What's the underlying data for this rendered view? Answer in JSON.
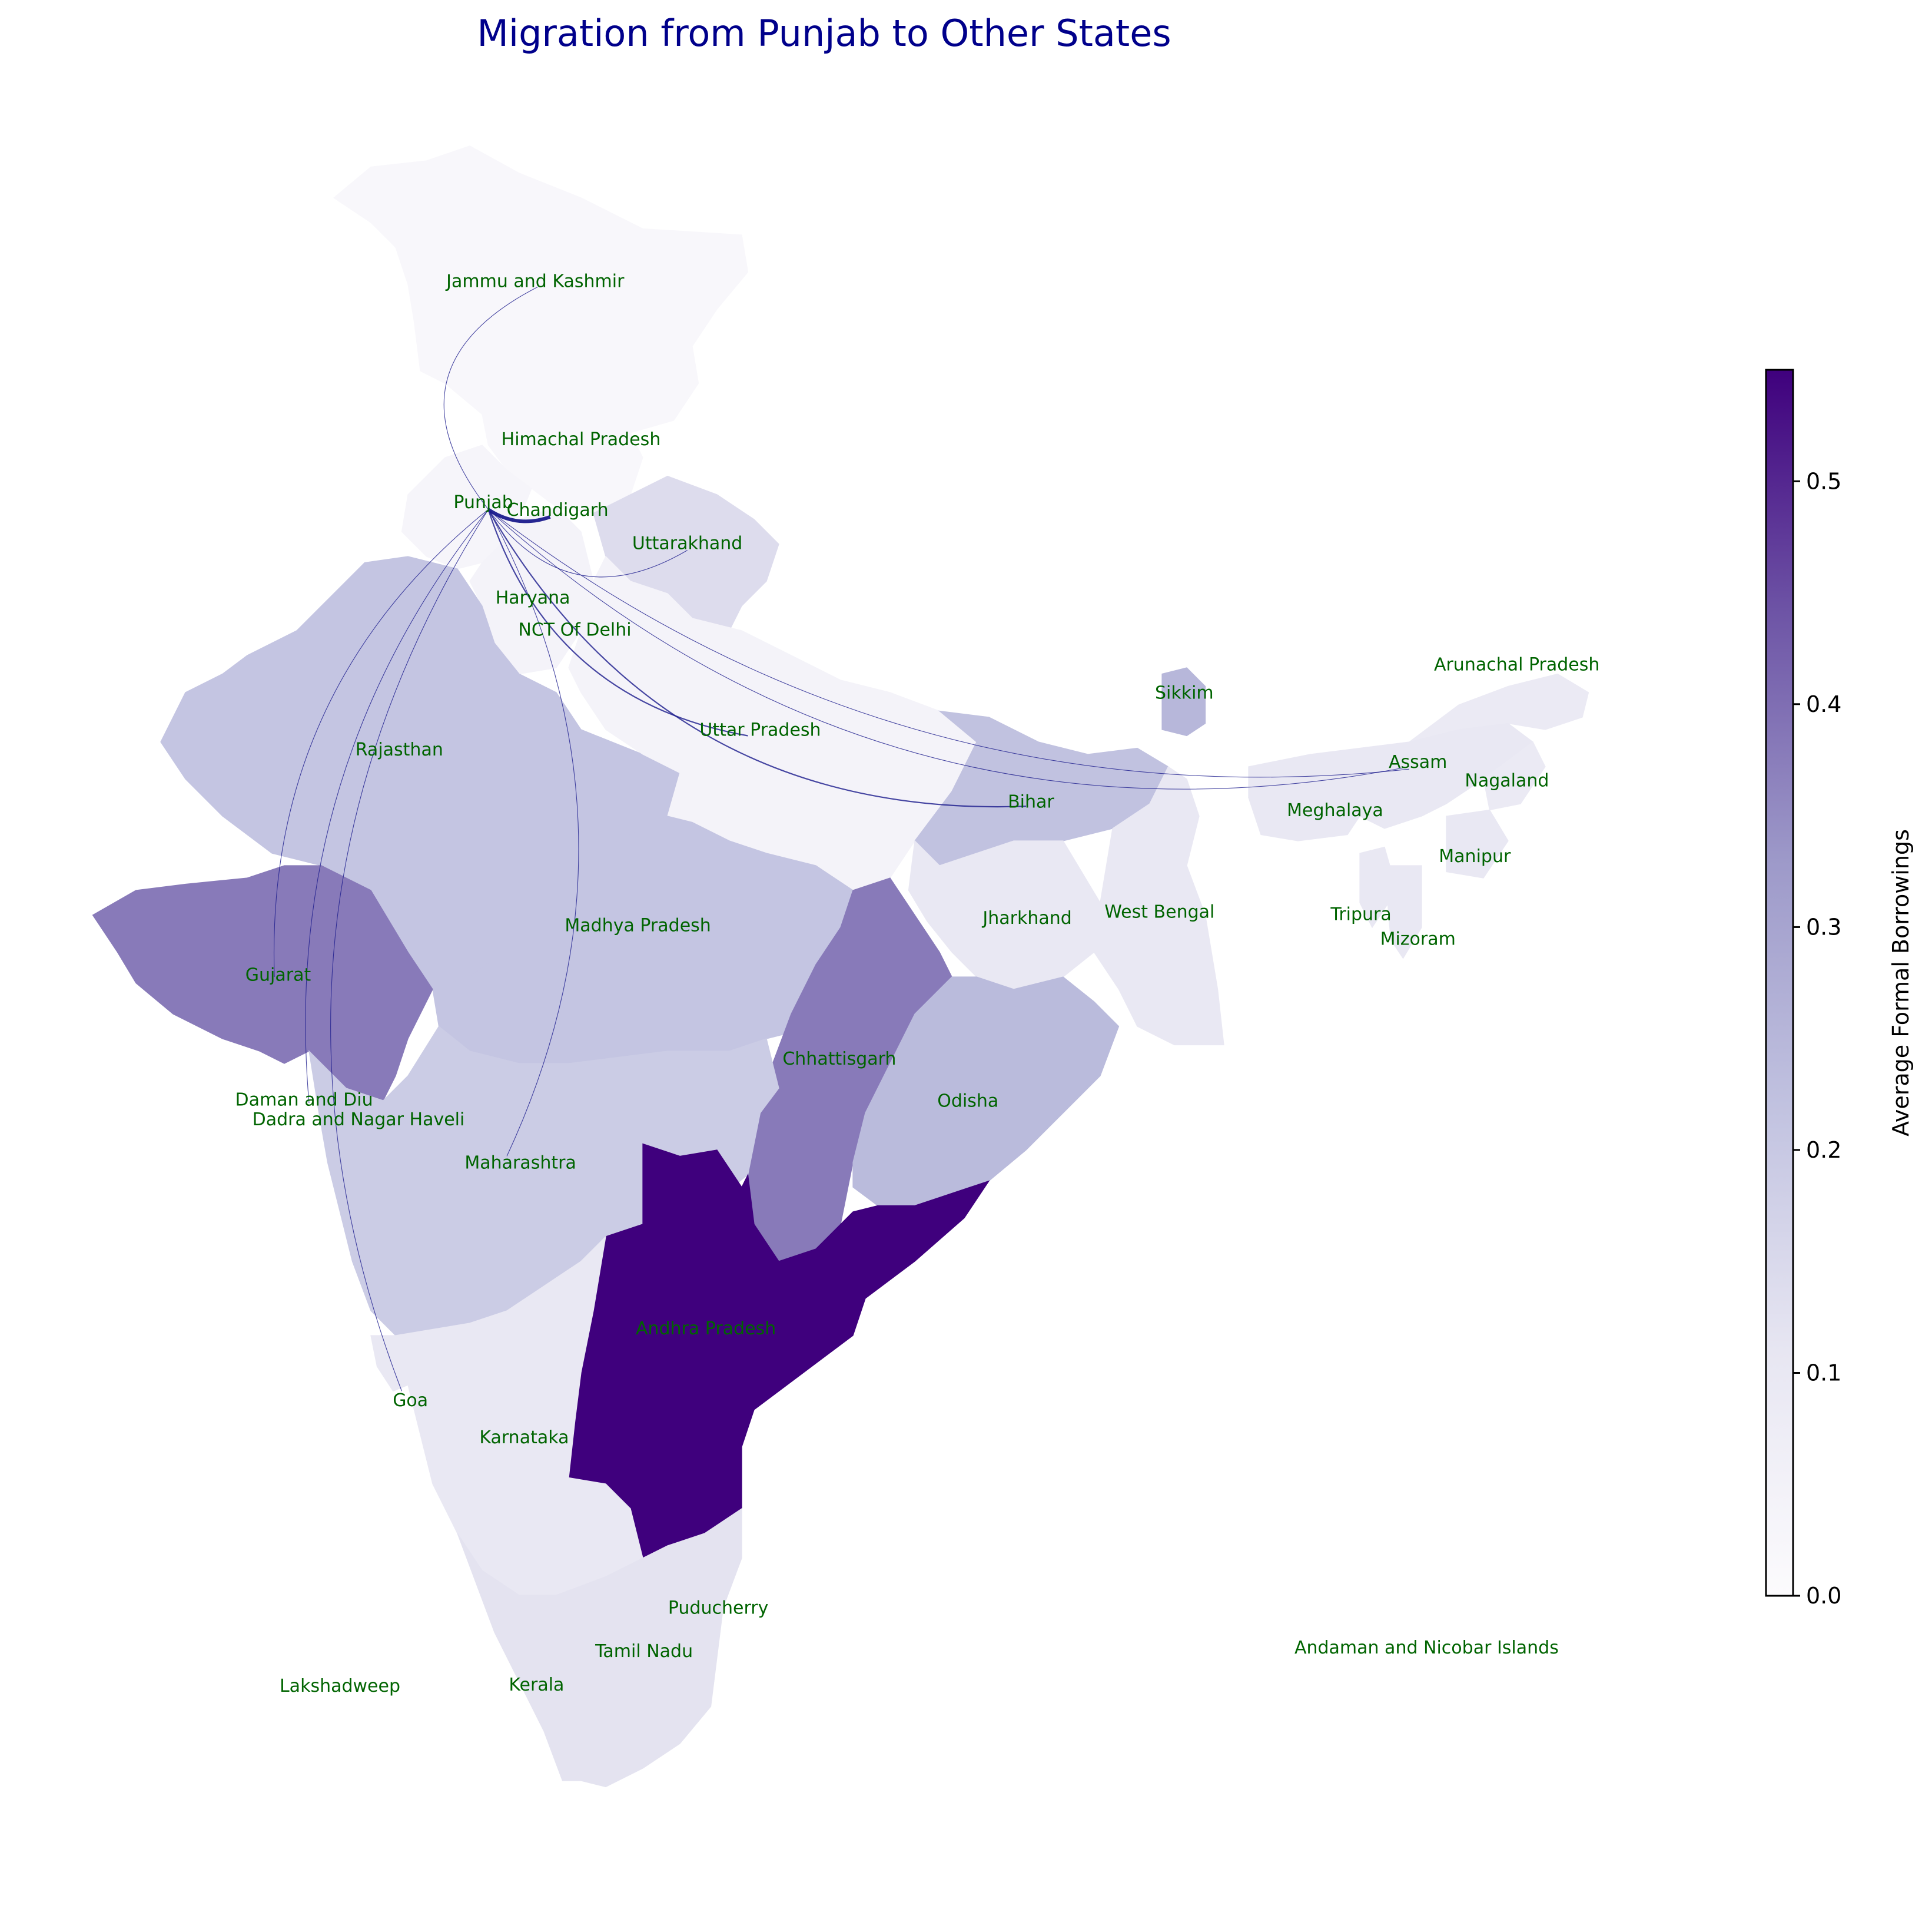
{
  "title": "Migration from Punjab to Other States",
  "colorbar": {
    "label": "Average Formal Borrowings",
    "ticks": [
      "0.0",
      "0.1",
      "0.2",
      "0.3",
      "0.4",
      "0.5"
    ],
    "min": 0.0,
    "max": 0.55,
    "colormap": "Purples",
    "color_low": "#fcfbfd",
    "color_high": "#3f007d"
  },
  "colors": {
    "label_text": "#006400",
    "flow_lines": "#1a1a8c",
    "title": "#00008b"
  },
  "origin": "Punjab",
  "states": [
    {
      "name": "Jammu and Kashmir",
      "value": 0.02
    },
    {
      "name": "Himachal Pradesh",
      "value": 0.02
    },
    {
      "name": "Punjab",
      "value": 0.03
    },
    {
      "name": "Chandigarh",
      "value": 0.05
    },
    {
      "name": "Uttarakhand",
      "value": 0.14
    },
    {
      "name": "Haryana",
      "value": 0.04
    },
    {
      "name": "NCT Of Delhi",
      "value": 0.05
    },
    {
      "name": "Rajasthan",
      "value": 0.21
    },
    {
      "name": "Uttar Pradesh",
      "value": 0.04
    },
    {
      "name": "Bihar",
      "value": 0.22
    },
    {
      "name": "Sikkim",
      "value": 0.25
    },
    {
      "name": "Arunachal Pradesh",
      "value": 0.09
    },
    {
      "name": "Assam",
      "value": 0.1
    },
    {
      "name": "Nagaland",
      "value": 0.09
    },
    {
      "name": "Meghalaya",
      "value": 0.1
    },
    {
      "name": "Manipur",
      "value": 0.1
    },
    {
      "name": "Tripura",
      "value": 0.1
    },
    {
      "name": "Mizoram",
      "value": 0.1
    },
    {
      "name": "West Bengal",
      "value": 0.1
    },
    {
      "name": "Jharkhand",
      "value": 0.1
    },
    {
      "name": "Madhya Pradesh",
      "value": 0.21
    },
    {
      "name": "Gujarat",
      "value": 0.38
    },
    {
      "name": "Chhattisgarh",
      "value": 0.38
    },
    {
      "name": "Odisha",
      "value": 0.24
    },
    {
      "name": "Daman and Diu",
      "value": 0.3
    },
    {
      "name": "Dadra and Nagar Haveli",
      "value": 0.3
    },
    {
      "name": "Maharashtra",
      "value": 0.19
    },
    {
      "name": "Andhra Pradesh",
      "value": 0.55
    },
    {
      "name": "Goa",
      "value": 0.1
    },
    {
      "name": "Karnataka",
      "value": 0.1
    },
    {
      "name": "Puducherry",
      "value": 0.12
    },
    {
      "name": "Tamil Nadu",
      "value": 0.12
    },
    {
      "name": "Kerala",
      "value": 0.12
    },
    {
      "name": "Lakshadweep",
      "value": 0.0
    },
    {
      "name": "Andaman and Nicobar Islands",
      "value": 0.0
    }
  ],
  "flows": [
    {
      "to": "Chandigarh",
      "weight": "heavy"
    },
    {
      "to": "Jammu and Kashmir",
      "weight": "light"
    },
    {
      "to": "Uttarakhand",
      "weight": "light"
    },
    {
      "to": "Uttar Pradesh",
      "weight": "medium"
    },
    {
      "to": "Bihar",
      "weight": "medium"
    },
    {
      "to": "Assam",
      "weight": "light"
    },
    {
      "to": "Arunachal Pradesh",
      "weight": "light"
    },
    {
      "to": "Gujarat",
      "weight": "light"
    },
    {
      "to": "Daman and Diu",
      "weight": "light"
    },
    {
      "to": "Maharashtra",
      "weight": "light"
    },
    {
      "to": "Goa",
      "weight": "light"
    }
  ]
}
